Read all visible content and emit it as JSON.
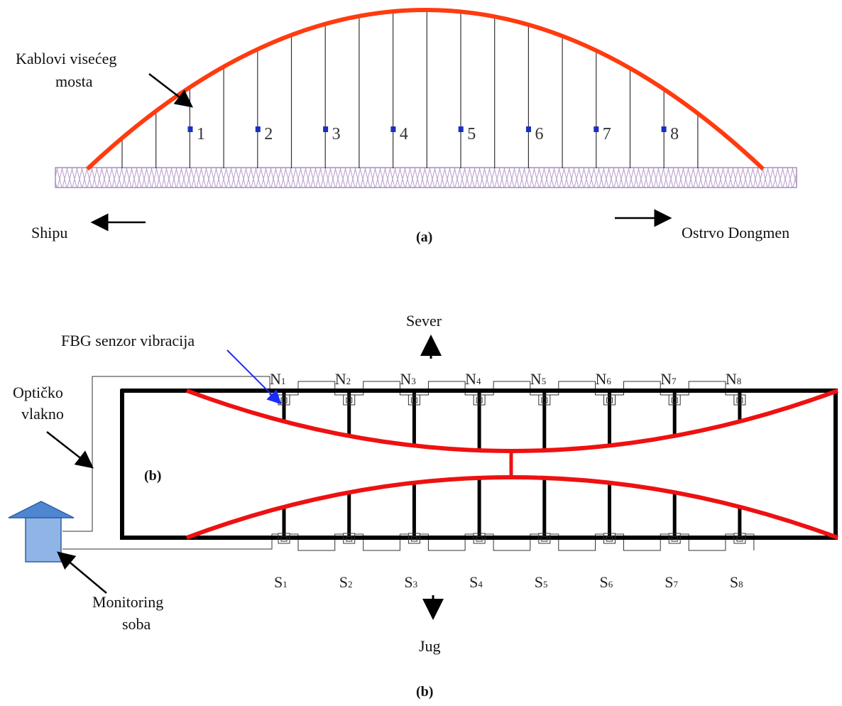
{
  "panel_a": {
    "caption": "(a)",
    "cable_label_line1": "Kablovi visećeg",
    "cable_label_line2": "mosta",
    "left_direction": "Shipu",
    "right_direction": "Ostrvo Dongmen",
    "sensor_numbers": [
      "1",
      "2",
      "3",
      "4",
      "5",
      "6",
      "7",
      "8"
    ]
  },
  "panel_b": {
    "caption": "(b)",
    "inner_label": "(b)",
    "north": "Sever",
    "south": "Jug",
    "fbg_label": "FBG senzor vibracija",
    "fiber_label_line1": "Optičko",
    "fiber_label_line2": "vlakno",
    "room_label_line1": "Monitoring",
    "room_label_line2": "soba",
    "north_nodes": [
      {
        "letter": "N",
        "index": "1"
      },
      {
        "letter": "N",
        "index": "2"
      },
      {
        "letter": "N",
        "index": "3"
      },
      {
        "letter": "N",
        "index": "4"
      },
      {
        "letter": "N",
        "index": "5"
      },
      {
        "letter": "N",
        "index": "6"
      },
      {
        "letter": "N",
        "index": "7"
      },
      {
        "letter": "N",
        "index": "8"
      }
    ],
    "south_nodes": [
      {
        "letter": "S",
        "index": "1"
      },
      {
        "letter": "S",
        "index": "2"
      },
      {
        "letter": "S",
        "index": "3"
      },
      {
        "letter": "S",
        "index": "4"
      },
      {
        "letter": "S",
        "index": "5"
      },
      {
        "letter": "S",
        "index": "6"
      },
      {
        "letter": "S",
        "index": "7"
      },
      {
        "letter": "S",
        "index": "8"
      }
    ]
  },
  "colors": {
    "arch": "#ff3b10",
    "arch_b": "#ee1111",
    "sensor": "#1a2fbf",
    "deck": "#b79cc9",
    "room": "#8fb4e6",
    "room_roof": "#4f86d0",
    "pointer_blue": "#1b2cff"
  }
}
